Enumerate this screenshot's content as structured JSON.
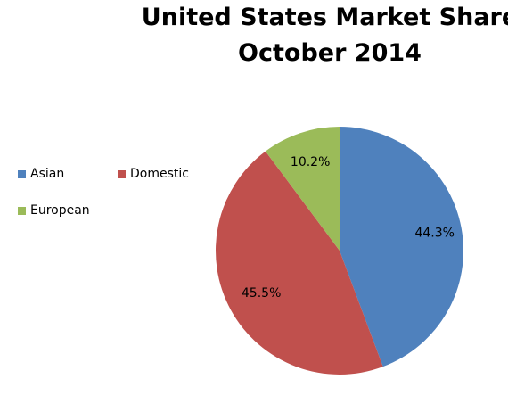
{
  "chart_data": {
    "type": "pie",
    "title": "United States Market Share",
    "subtitle": "October 2014",
    "categories": [
      "Asian",
      "Domestic",
      "European"
    ],
    "values": [
      44.3,
      45.5,
      10.2
    ],
    "value_labels": [
      "44.3%",
      "45.5%",
      "10.2%"
    ],
    "colors": [
      "#4F81BD",
      "#C0504D",
      "#9BBB59"
    ],
    "legend_position": "left"
  }
}
